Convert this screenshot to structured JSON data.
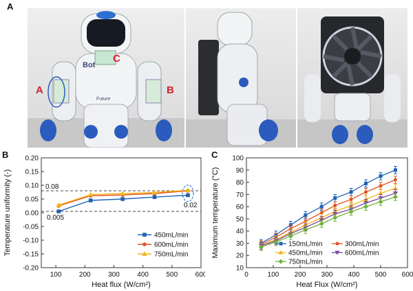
{
  "panel_labels": {
    "a": "A",
    "b": "B",
    "c": "C"
  },
  "photo_labels": {
    "a": "A",
    "b": "B",
    "c": "C",
    "robot_text": "Bot",
    "robot_text2": "Future"
  },
  "colors": {
    "s150": "#1f63b5",
    "s300": "#e0531f",
    "s450": "#f2b61c",
    "s600": "#7b3fa0",
    "s750": "#6fb43a",
    "photo_label": "#d3212c"
  },
  "chart_data": [
    {
      "type": "line",
      "panel": "B",
      "xlabel": "Heat flux (W/cm²)",
      "ylabel": "Temperature uniformity (-)",
      "xlim": [
        50,
        600
      ],
      "ylim": [
        -0.2,
        0.2
      ],
      "xticks": [
        "100",
        "200",
        "300",
        "400",
        "500",
        "600"
      ],
      "yticks": [
        "-0.20",
        "-0.15",
        "-0.10",
        "-0.05",
        "0.00",
        "0.05",
        "0.10",
        "0.15",
        "0.20"
      ],
      "x": [
        110,
        220,
        330,
        440,
        555
      ],
      "series": [
        {
          "name": "450mL/min",
          "values": [
            0.005,
            0.045,
            0.05,
            0.057,
            0.064
          ],
          "marker": "square",
          "color": "#1f63b5"
        },
        {
          "name": "600mL/min",
          "values": [
            0.025,
            0.062,
            0.065,
            0.07,
            0.08
          ],
          "marker": "circle",
          "color": "#e0531f"
        },
        {
          "name": "750mL/min",
          "values": [
            0.028,
            0.066,
            0.07,
            0.074,
            0.082
          ],
          "marker": "triangle",
          "color": "#f2b61c"
        }
      ],
      "reference_lines": [
        0.08,
        0.005
      ],
      "annotations": {
        "upper": "0.08",
        "lower": "0.005",
        "right": "0.02"
      }
    },
    {
      "type": "line",
      "panel": "C",
      "xlabel": "Heat Flux (W/cm²)",
      "ylabel": "Maximum temperature (°C)",
      "xlim": [
        0,
        600
      ],
      "ylim": [
        10,
        100
      ],
      "xticks": [
        "0",
        "100",
        "200",
        "300",
        "400",
        "500",
        "600"
      ],
      "yticks": [
        "10",
        "20",
        "30",
        "40",
        "50",
        "60",
        "70",
        "80",
        "90",
        "100"
      ],
      "x": [
        55,
        110,
        165,
        220,
        280,
        330,
        390,
        445,
        500,
        555
      ],
      "series": [
        {
          "name": "150mL/min",
          "values": [
            30,
            37,
            45,
            53,
            60,
            67,
            72,
            79,
            85,
            90
          ],
          "marker": "square",
          "color": "#1f63b5",
          "error": 3
        },
        {
          "name": "300mL/min",
          "values": [
            29,
            35,
            42,
            48,
            55,
            61,
            66,
            72,
            77,
            82
          ],
          "marker": "circle",
          "color": "#e0531f",
          "error": 3
        },
        {
          "name": "450mL/min",
          "values": [
            28,
            33,
            39,
            45,
            51,
            56,
            61,
            66,
            71,
            75
          ],
          "marker": "triangle",
          "color": "#f2b61c",
          "error": 3
        },
        {
          "name": "600mL/min",
          "values": [
            28,
            32,
            38,
            43,
            49,
            54,
            58,
            63,
            67,
            71
          ],
          "marker": "triangle-down",
          "color": "#7b3fa0",
          "error": 3
        },
        {
          "name": "750mL/min",
          "values": [
            27,
            31,
            36,
            41,
            46,
            51,
            56,
            60,
            64,
            68
          ],
          "marker": "diamond",
          "color": "#6fb43a",
          "error": 3
        }
      ]
    }
  ]
}
